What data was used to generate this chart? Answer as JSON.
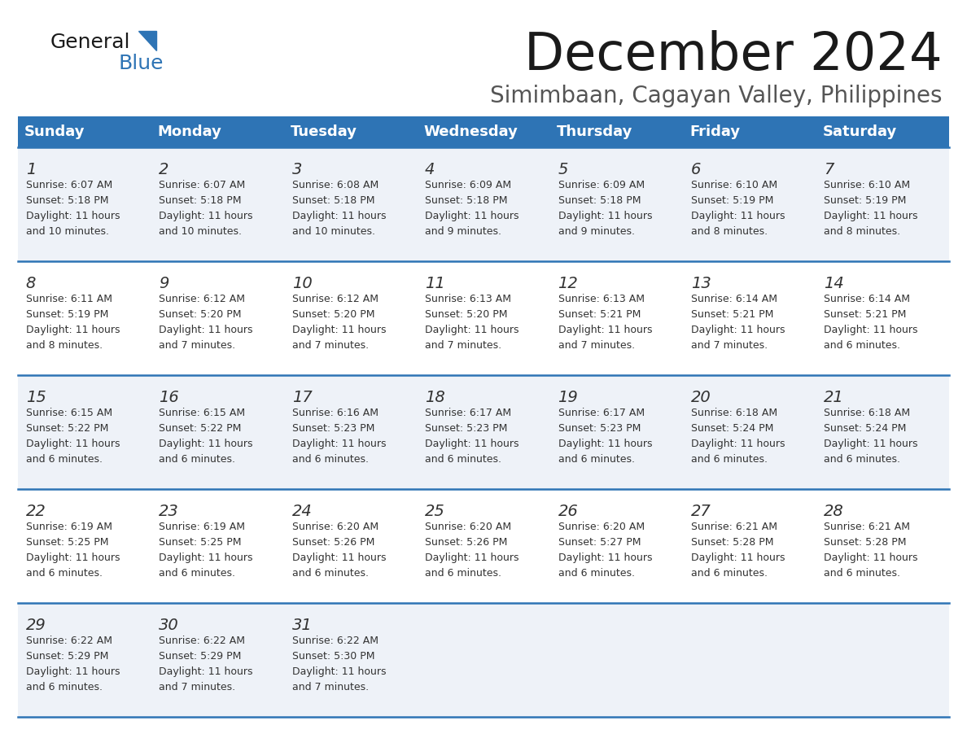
{
  "title": "December 2024",
  "subtitle": "Simimbaan, Cagayan Valley, Philippines",
  "header_color": "#2E74B5",
  "header_text_color": "#FFFFFF",
  "cell_bg_even": "#FFFFFF",
  "cell_bg_odd": "#EEF2F8",
  "border_color": "#2E74B5",
  "text_color": "#333333",
  "days_of_week": [
    "Sunday",
    "Monday",
    "Tuesday",
    "Wednesday",
    "Thursday",
    "Friday",
    "Saturday"
  ],
  "calendar_data": [
    [
      {
        "day": 1,
        "sunrise": "6:07 AM",
        "sunset": "5:18 PM",
        "daylight_hours": 11,
        "daylight_minutes": 10
      },
      {
        "day": 2,
        "sunrise": "6:07 AM",
        "sunset": "5:18 PM",
        "daylight_hours": 11,
        "daylight_minutes": 10
      },
      {
        "day": 3,
        "sunrise": "6:08 AM",
        "sunset": "5:18 PM",
        "daylight_hours": 11,
        "daylight_minutes": 10
      },
      {
        "day": 4,
        "sunrise": "6:09 AM",
        "sunset": "5:18 PM",
        "daylight_hours": 11,
        "daylight_minutes": 9
      },
      {
        "day": 5,
        "sunrise": "6:09 AM",
        "sunset": "5:18 PM",
        "daylight_hours": 11,
        "daylight_minutes": 9
      },
      {
        "day": 6,
        "sunrise": "6:10 AM",
        "sunset": "5:19 PM",
        "daylight_hours": 11,
        "daylight_minutes": 8
      },
      {
        "day": 7,
        "sunrise": "6:10 AM",
        "sunset": "5:19 PM",
        "daylight_hours": 11,
        "daylight_minutes": 8
      }
    ],
    [
      {
        "day": 8,
        "sunrise": "6:11 AM",
        "sunset": "5:19 PM",
        "daylight_hours": 11,
        "daylight_minutes": 8
      },
      {
        "day": 9,
        "sunrise": "6:12 AM",
        "sunset": "5:20 PM",
        "daylight_hours": 11,
        "daylight_minutes": 7
      },
      {
        "day": 10,
        "sunrise": "6:12 AM",
        "sunset": "5:20 PM",
        "daylight_hours": 11,
        "daylight_minutes": 7
      },
      {
        "day": 11,
        "sunrise": "6:13 AM",
        "sunset": "5:20 PM",
        "daylight_hours": 11,
        "daylight_minutes": 7
      },
      {
        "day": 12,
        "sunrise": "6:13 AM",
        "sunset": "5:21 PM",
        "daylight_hours": 11,
        "daylight_minutes": 7
      },
      {
        "day": 13,
        "sunrise": "6:14 AM",
        "sunset": "5:21 PM",
        "daylight_hours": 11,
        "daylight_minutes": 7
      },
      {
        "day": 14,
        "sunrise": "6:14 AM",
        "sunset": "5:21 PM",
        "daylight_hours": 11,
        "daylight_minutes": 6
      }
    ],
    [
      {
        "day": 15,
        "sunrise": "6:15 AM",
        "sunset": "5:22 PM",
        "daylight_hours": 11,
        "daylight_minutes": 6
      },
      {
        "day": 16,
        "sunrise": "6:15 AM",
        "sunset": "5:22 PM",
        "daylight_hours": 11,
        "daylight_minutes": 6
      },
      {
        "day": 17,
        "sunrise": "6:16 AM",
        "sunset": "5:23 PM",
        "daylight_hours": 11,
        "daylight_minutes": 6
      },
      {
        "day": 18,
        "sunrise": "6:17 AM",
        "sunset": "5:23 PM",
        "daylight_hours": 11,
        "daylight_minutes": 6
      },
      {
        "day": 19,
        "sunrise": "6:17 AM",
        "sunset": "5:23 PM",
        "daylight_hours": 11,
        "daylight_minutes": 6
      },
      {
        "day": 20,
        "sunrise": "6:18 AM",
        "sunset": "5:24 PM",
        "daylight_hours": 11,
        "daylight_minutes": 6
      },
      {
        "day": 21,
        "sunrise": "6:18 AM",
        "sunset": "5:24 PM",
        "daylight_hours": 11,
        "daylight_minutes": 6
      }
    ],
    [
      {
        "day": 22,
        "sunrise": "6:19 AM",
        "sunset": "5:25 PM",
        "daylight_hours": 11,
        "daylight_minutes": 6
      },
      {
        "day": 23,
        "sunrise": "6:19 AM",
        "sunset": "5:25 PM",
        "daylight_hours": 11,
        "daylight_minutes": 6
      },
      {
        "day": 24,
        "sunrise": "6:20 AM",
        "sunset": "5:26 PM",
        "daylight_hours": 11,
        "daylight_minutes": 6
      },
      {
        "day": 25,
        "sunrise": "6:20 AM",
        "sunset": "5:26 PM",
        "daylight_hours": 11,
        "daylight_minutes": 6
      },
      {
        "day": 26,
        "sunrise": "6:20 AM",
        "sunset": "5:27 PM",
        "daylight_hours": 11,
        "daylight_minutes": 6
      },
      {
        "day": 27,
        "sunrise": "6:21 AM",
        "sunset": "5:28 PM",
        "daylight_hours": 11,
        "daylight_minutes": 6
      },
      {
        "day": 28,
        "sunrise": "6:21 AM",
        "sunset": "5:28 PM",
        "daylight_hours": 11,
        "daylight_minutes": 6
      }
    ],
    [
      {
        "day": 29,
        "sunrise": "6:22 AM",
        "sunset": "5:29 PM",
        "daylight_hours": 11,
        "daylight_minutes": 6
      },
      {
        "day": 30,
        "sunrise": "6:22 AM",
        "sunset": "5:29 PM",
        "daylight_hours": 11,
        "daylight_minutes": 7
      },
      {
        "day": 31,
        "sunrise": "6:22 AM",
        "sunset": "5:30 PM",
        "daylight_hours": 11,
        "daylight_minutes": 7
      },
      null,
      null,
      null,
      null
    ]
  ]
}
